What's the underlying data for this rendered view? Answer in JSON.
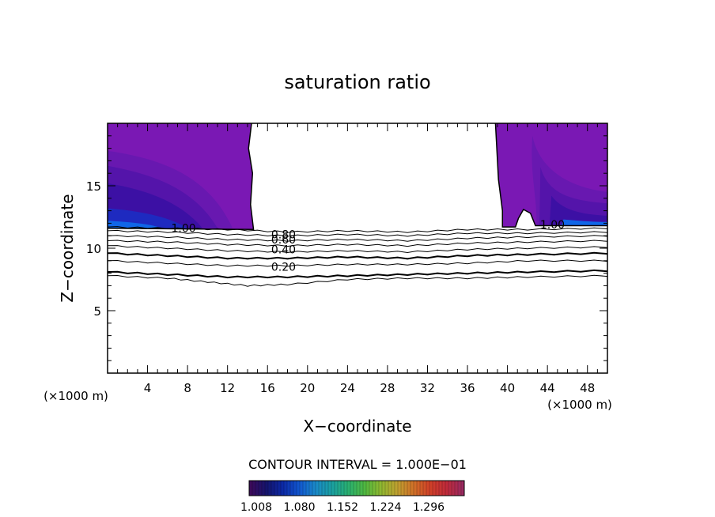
{
  "chart_data": {
    "type": "contour",
    "title": "saturation ratio",
    "xlabel": "X−coordinate",
    "ylabel": "Z−coordinate",
    "x_unit_left": "(×1000 m)",
    "x_unit_right": "(×1000 m)",
    "xlim": [
      0,
      50
    ],
    "ylim": [
      0,
      20
    ],
    "x_ticks": [
      4,
      8,
      12,
      16,
      20,
      24,
      28,
      32,
      36,
      40,
      44,
      48
    ],
    "y_ticks": [
      5,
      10,
      15
    ],
    "grid": false,
    "contour_interval_text": "CONTOUR INTERVAL = 1.000E−01",
    "contour_labels": [
      {
        "value": "1.00",
        "x": 7.6,
        "z": 11.6
      },
      {
        "value": "1.00",
        "x": 44.5,
        "z": 11.9
      },
      {
        "value": "0.80",
        "x": 17.6,
        "z": 11.1
      },
      {
        "value": "0.60",
        "x": 17.6,
        "z": 10.7
      },
      {
        "value": "0.40",
        "x": 17.6,
        "z": 9.9
      },
      {
        "value": "0.20",
        "x": 17.6,
        "z": 8.5
      }
    ],
    "subsaturated_contours": [
      {
        "level": 0.9,
        "points": [
          [
            0,
            11.7
          ],
          [
            6,
            11.6
          ],
          [
            12,
            11.5
          ],
          [
            18,
            11.3
          ],
          [
            24,
            11.4
          ],
          [
            30,
            11.3
          ],
          [
            36,
            11.5
          ],
          [
            42,
            11.5
          ],
          [
            50,
            11.6
          ]
        ]
      },
      {
        "level": 0.8,
        "points": [
          [
            0,
            11.4
          ],
          [
            6,
            11.3
          ],
          [
            12,
            11.1
          ],
          [
            18,
            11.0
          ],
          [
            24,
            11.1
          ],
          [
            30,
            11.0
          ],
          [
            36,
            11.2
          ],
          [
            42,
            11.2
          ],
          [
            50,
            11.3
          ]
        ]
      },
      {
        "level": 0.7,
        "points": [
          [
            0,
            11.0
          ],
          [
            6,
            10.9
          ],
          [
            12,
            10.7
          ],
          [
            18,
            10.6
          ],
          [
            24,
            10.7
          ],
          [
            30,
            10.6
          ],
          [
            36,
            10.8
          ],
          [
            42,
            10.9
          ],
          [
            50,
            11.0
          ]
        ]
      },
      {
        "level": 0.6,
        "points": [
          [
            0,
            10.6
          ],
          [
            6,
            10.5
          ],
          [
            12,
            10.3
          ],
          [
            18,
            10.2
          ],
          [
            24,
            10.3
          ],
          [
            30,
            10.2
          ],
          [
            36,
            10.4
          ],
          [
            42,
            10.5
          ],
          [
            50,
            10.6
          ]
        ]
      },
      {
        "level": 0.5,
        "points": [
          [
            0,
            10.2
          ],
          [
            6,
            10.0
          ],
          [
            12,
            9.8
          ],
          [
            18,
            9.7
          ],
          [
            24,
            9.8
          ],
          [
            30,
            9.7
          ],
          [
            36,
            9.9
          ],
          [
            42,
            10.0
          ],
          [
            50,
            10.1
          ]
        ]
      },
      {
        "level": 0.4,
        "points": [
          [
            0,
            9.6
          ],
          [
            6,
            9.4
          ],
          [
            12,
            9.2
          ],
          [
            18,
            9.2
          ],
          [
            24,
            9.3
          ],
          [
            30,
            9.2
          ],
          [
            36,
            9.4
          ],
          [
            42,
            9.5
          ],
          [
            50,
            9.6
          ]
        ]
      },
      {
        "level": 0.3,
        "points": [
          [
            0,
            9.0
          ],
          [
            6,
            8.8
          ],
          [
            12,
            8.6
          ],
          [
            18,
            8.6
          ],
          [
            24,
            8.7
          ],
          [
            30,
            8.7
          ],
          [
            36,
            8.8
          ],
          [
            42,
            9.0
          ],
          [
            50,
            9.0
          ]
        ]
      },
      {
        "level": 0.2,
        "points": [
          [
            0,
            8.1
          ],
          [
            6,
            7.9
          ],
          [
            12,
            7.7
          ],
          [
            18,
            7.7
          ],
          [
            24,
            7.8
          ],
          [
            30,
            7.9
          ],
          [
            36,
            8.0
          ],
          [
            42,
            8.1
          ],
          [
            50,
            8.2
          ]
        ]
      },
      {
        "level": 0.1,
        "points": [
          [
            0,
            7.8
          ],
          [
            6,
            7.6
          ],
          [
            10,
            7.3
          ],
          [
            14,
            7.0
          ],
          [
            18,
            7.1
          ],
          [
            24,
            7.5
          ],
          [
            30,
            7.6
          ],
          [
            36,
            7.6
          ],
          [
            42,
            7.7
          ],
          [
            50,
            7.8
          ]
        ]
      }
    ],
    "supersaturated_regions": [
      {
        "name": "left",
        "x_range": [
          0,
          14.5
        ],
        "z_range": [
          11.5,
          20
        ]
      },
      {
        "name": "right",
        "x_range": [
          38.8,
          50
        ],
        "z_range": [
          11.5,
          20
        ]
      }
    ],
    "colorbar": {
      "tick_labels": [
        "1.008",
        "1.080",
        "1.152",
        "1.224",
        "1.296"
      ],
      "colors": [
        "#3a0a5a",
        "#14146e",
        "#0c2aa8",
        "#1258d0",
        "#1a8ac8",
        "#1aa0a0",
        "#2ab070",
        "#50b840",
        "#90b830",
        "#c0a030",
        "#d07028",
        "#d04028",
        "#c02a3a",
        "#9a2a60"
      ]
    },
    "fill_colors": [
      "#7a18b4",
      "#6818b0",
      "#5414aa",
      "#3c10a4",
      "#1e2ac0",
      "#1066e8"
    ]
  }
}
